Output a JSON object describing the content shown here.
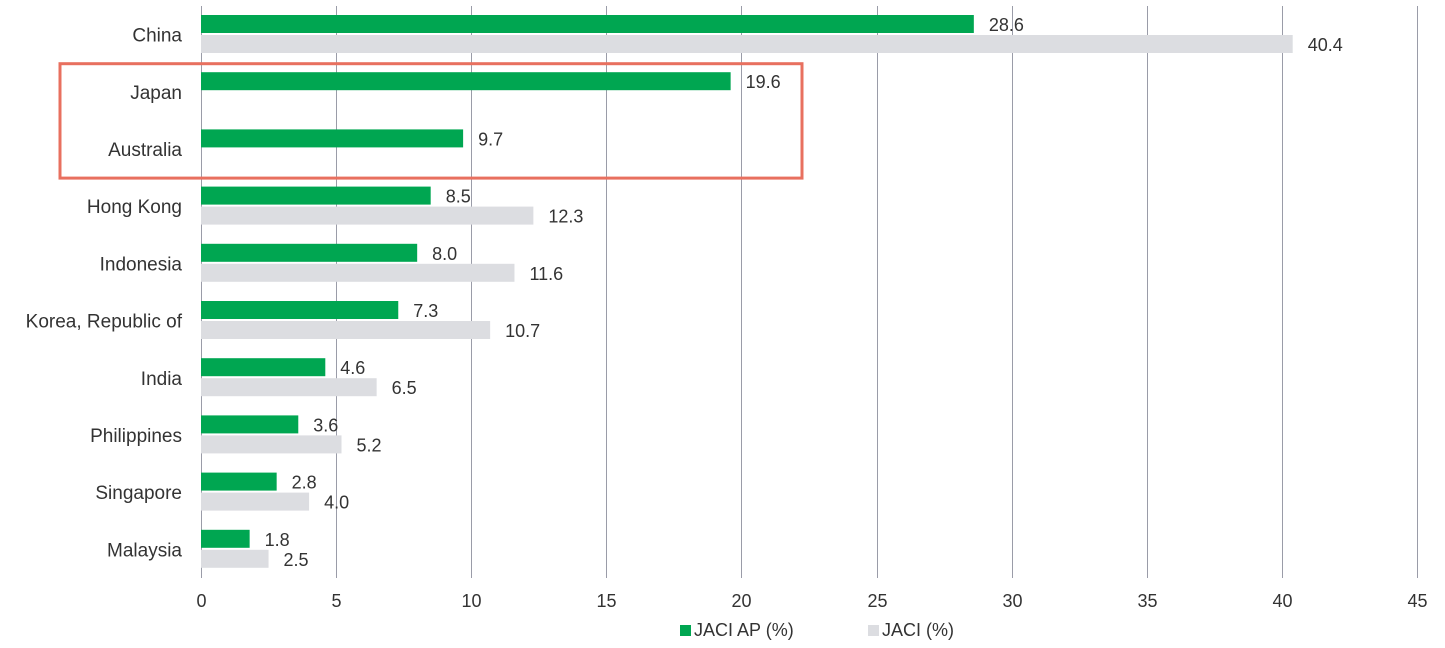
{
  "chart_data": {
    "type": "bar",
    "orientation": "horizontal",
    "categories": [
      "China",
      "Japan",
      "Australia",
      "Hong Kong",
      "Indonesia",
      "Korea, Republic of",
      "India",
      "Philippines",
      "Singapore",
      "Malaysia"
    ],
    "series": [
      {
        "name": "JACI AP (%)",
        "color": "#00a651",
        "values": [
          28.6,
          19.6,
          9.7,
          8.5,
          8.0,
          7.3,
          4.6,
          3.6,
          2.8,
          1.8
        ]
      },
      {
        "name": "JACI (%)",
        "color": "#dcdde1",
        "values": [
          40.4,
          null,
          null,
          12.3,
          11.6,
          10.7,
          6.5,
          5.2,
          4.0,
          2.5
        ]
      }
    ],
    "value_labels": [
      [
        "28.6",
        "19.6",
        "9.7",
        "8.5",
        "8.0",
        "7.3",
        "4.6",
        "3.6",
        "2.8",
        "1.8"
      ],
      [
        "40.4",
        "",
        "",
        "12.3",
        "11.6",
        "10.7",
        "6.5",
        "5.2",
        "4.0",
        "2.5"
      ]
    ],
    "xlim": [
      0,
      45
    ],
    "x_ticks": [
      "0",
      "5",
      "10",
      "15",
      "20",
      "25",
      "30",
      "35",
      "40",
      "45"
    ],
    "grid": true,
    "legend": "bottom",
    "highlight": {
      "categories": [
        "Japan",
        "Australia"
      ],
      "color": "#e8705f"
    }
  }
}
